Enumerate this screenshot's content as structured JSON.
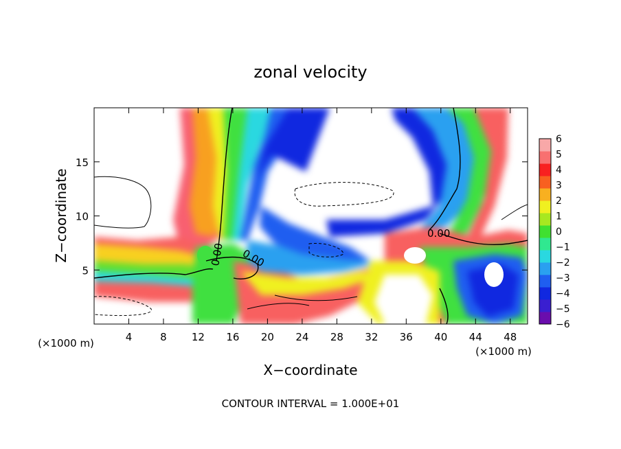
{
  "chart_data": {
    "type": "heatmap",
    "title": "zonal velocity",
    "xlabel": "X−coordinate",
    "ylabel": "Z−coordinate",
    "x_unit": "(×1000 m)",
    "x_unit_right": "(×1000 m)",
    "xlim": [
      0,
      50
    ],
    "ylim": [
      0,
      20
    ],
    "x_ticks": [
      4,
      8,
      12,
      16,
      20,
      24,
      28,
      32,
      36,
      40,
      44,
      48
    ],
    "y_ticks": [
      5,
      10,
      15
    ],
    "colorbar": {
      "ticks": [
        "6",
        "5",
        "4",
        "3",
        "2",
        "1",
        "0",
        "−1",
        "−2",
        "−3",
        "−4",
        "−5",
        "−6"
      ],
      "range": [
        -6,
        6
      ],
      "colors": [
        "#6a0dad",
        "#3a1fd0",
        "#1028e0",
        "#1f5ef0",
        "#2aa0f0",
        "#2ad8e0",
        "#30e890",
        "#40e030",
        "#a8e820",
        "#f0f020",
        "#f8b020",
        "#f86020",
        "#f82020",
        "#f87070",
        "#f8a8a8"
      ]
    },
    "contour_labels": [
      "0.00",
      "0.00",
      "0.00"
    ],
    "footer": "CONTOUR INTERVAL = 1.000E+01"
  }
}
